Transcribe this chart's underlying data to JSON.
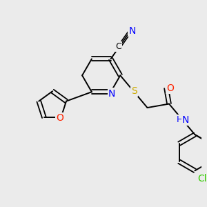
{
  "bg_color": "#ebebeb",
  "atom_colors": {
    "C": "#000000",
    "N": "#0000ff",
    "O": "#ff2200",
    "S": "#ccaa00",
    "Cl": "#33cc00",
    "H": "#0000ff"
  },
  "figsize": [
    3.0,
    3.0
  ],
  "dpi": 100
}
